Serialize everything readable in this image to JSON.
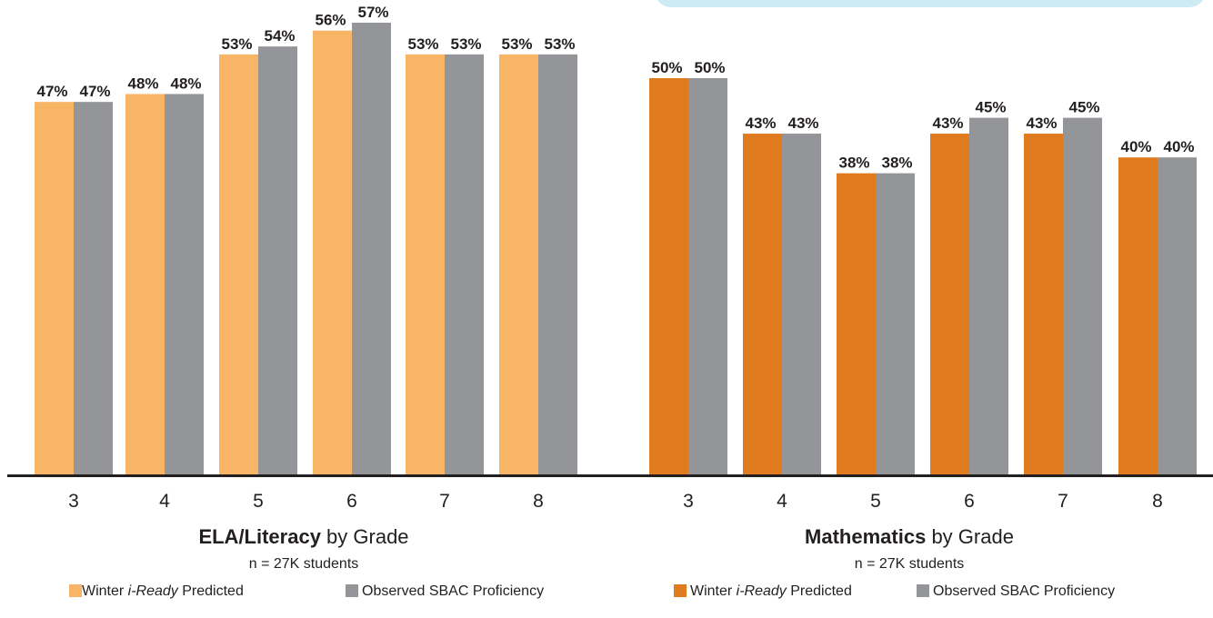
{
  "chart_data": [
    {
      "type": "bar",
      "title": "ELA/Literacy",
      "title_suffix": " by Grade",
      "subtitle": "n = 27K students",
      "categories": [
        "3",
        "4",
        "5",
        "6",
        "7",
        "8"
      ],
      "series": [
        {
          "name": "Winter i-Ready Predicted",
          "name_parts": [
            "Winter ",
            "i-Ready",
            " Predicted"
          ],
          "color": "#f8b565",
          "values": [
            47,
            48,
            53,
            56,
            53,
            53
          ]
        },
        {
          "name": "Observed SBAC Proficiency",
          "color": "#939598",
          "values": [
            47,
            48,
            54,
            57,
            53,
            53
          ]
        }
      ],
      "value_suffix": "%",
      "ylim": [
        0,
        60
      ],
      "grid": false,
      "legend_position": "bottom"
    },
    {
      "type": "bar",
      "title": "Mathematics",
      "title_suffix": " by Grade",
      "subtitle": "n = 27K students",
      "categories": [
        "3",
        "4",
        "5",
        "6",
        "7",
        "8"
      ],
      "series": [
        {
          "name": "Winter i-Ready Predicted",
          "name_parts": [
            "Winter ",
            "i-Ready",
            " Predicted"
          ],
          "color": "#e07b1f",
          "values": [
            50,
            43,
            38,
            43,
            43,
            40
          ]
        },
        {
          "name": "Observed SBAC Proficiency",
          "color": "#939598",
          "values": [
            50,
            43,
            38,
            45,
            45,
            40
          ]
        }
      ],
      "value_suffix": "%",
      "ylim": [
        0,
        60
      ],
      "grid": false,
      "legend_position": "bottom"
    }
  ]
}
